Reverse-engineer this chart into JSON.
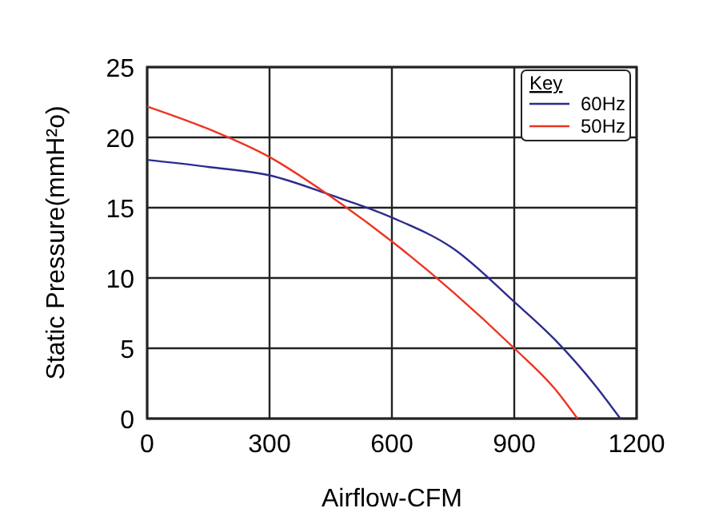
{
  "chart_data": {
    "type": "line",
    "xlabel": "Airflow-CFM",
    "ylabel": "Static Pressure(mmH²o)",
    "legend_title": "Key",
    "legend": "top right",
    "grid": true,
    "xlim": [
      0,
      1200
    ],
    "xticks": [
      0,
      300,
      600,
      900,
      1200
    ],
    "ylim": [
      0,
      25
    ],
    "yticks": [
      0,
      5,
      10,
      15,
      20,
      25
    ],
    "series": [
      {
        "name": "60Hz",
        "color": "#2b2b8f",
        "x": [
          0,
          150,
          300,
          450,
          600,
          750,
          900,
          1000,
          1100,
          1160
        ],
        "values": [
          18.4,
          17.9,
          17.3,
          15.9,
          14.3,
          12.1,
          8.3,
          5.6,
          2.3,
          0
        ]
      },
      {
        "name": "50Hz",
        "color": "#ee3322",
        "x": [
          0,
          150,
          300,
          450,
          600,
          750,
          900,
          1000,
          1055
        ],
        "values": [
          22.2,
          20.6,
          18.6,
          15.8,
          12.6,
          9.0,
          5.0,
          2.1,
          0
        ]
      }
    ]
  }
}
